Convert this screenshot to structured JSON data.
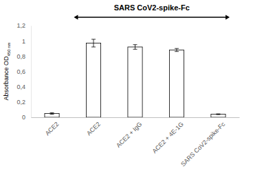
{
  "chart_data": {
    "type": "bar",
    "title": "SARS CoV2-spike-Fc",
    "y_label": "Absorbance OD",
    "y_label_subscript": "450 nm",
    "categories": [
      "ACE2",
      "ACE2",
      "ACE2 + IgG",
      "ACE2 + 4E-1G",
      "SARS CoV2-spike-Fc"
    ],
    "values": [
      0.05,
      0.97,
      0.92,
      0.88,
      0.04
    ],
    "errors": [
      0.01,
      0.05,
      0.03,
      0.02,
      0.005
    ],
    "color": "#ffffff",
    "ylim": [
      0,
      1.2
    ],
    "yticks": [
      0,
      {
        "value": 0.2,
        "label": "0,2"
      },
      {
        "value": 0.4,
        "label": "0,4"
      },
      {
        "value": 0.6,
        "label": "0,6"
      },
      {
        "value": 0.8,
        "label": "0,8"
      },
      1,
      {
        "value": 1.2,
        "label": "1,2"
      }
    ],
    "grid": false
  }
}
